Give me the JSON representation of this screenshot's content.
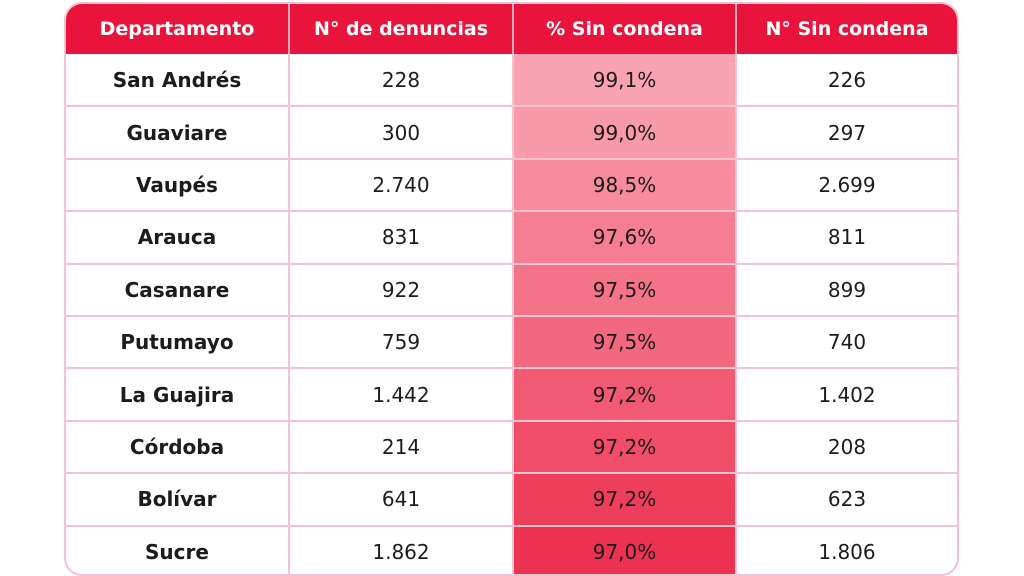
{
  "table": {
    "headers": [
      "Departamento",
      "N° de denuncias",
      "% Sin condena",
      "N° Sin condena"
    ],
    "rows": [
      {
        "departamento": "San Andrés",
        "denuncias": "228",
        "pct_sin_condena": "99,1%",
        "sin_condena": "226"
      },
      {
        "departamento": "Guaviare",
        "denuncias": "300",
        "pct_sin_condena": "99,0%",
        "sin_condena": "297"
      },
      {
        "departamento": "Vaupés",
        "denuncias": "2.740",
        "pct_sin_condena": "98,5%",
        "sin_condena": "2.699"
      },
      {
        "departamento": "Arauca",
        "denuncias": "831",
        "pct_sin_condena": "97,6%",
        "sin_condena": "811"
      },
      {
        "departamento": "Casanare",
        "denuncias": "922",
        "pct_sin_condena": "97,5%",
        "sin_condena": "899"
      },
      {
        "departamento": "Putumayo",
        "denuncias": "759",
        "pct_sin_condena": "97,5%",
        "sin_condena": "740"
      },
      {
        "departamento": "La Guajira",
        "denuncias": "1.442",
        "pct_sin_condena": "97,2%",
        "sin_condena": "1.402"
      },
      {
        "departamento": "Córdoba",
        "denuncias": "214",
        "pct_sin_condena": "97,2%",
        "sin_condena": "208"
      },
      {
        "departamento": "Bolívar",
        "denuncias": "641",
        "pct_sin_condena": "97,2%",
        "sin_condena": "623"
      },
      {
        "departamento": "Sucre",
        "denuncias": "1.862",
        "pct_sin_condena": "97,0%",
        "sin_condena": "1.806"
      }
    ]
  },
  "colors": {
    "header_bg": "#e8143c",
    "header_text": "#ffffff",
    "border": "#f2c4cf",
    "pct_column_shades": [
      "#f9a3b2",
      "#f89aaa",
      "#f78c9e",
      "#f57e92",
      "#f47388",
      "#f2687e",
      "#f05a73",
      "#ef4d68",
      "#ed3f5c",
      "#ec3252"
    ]
  }
}
